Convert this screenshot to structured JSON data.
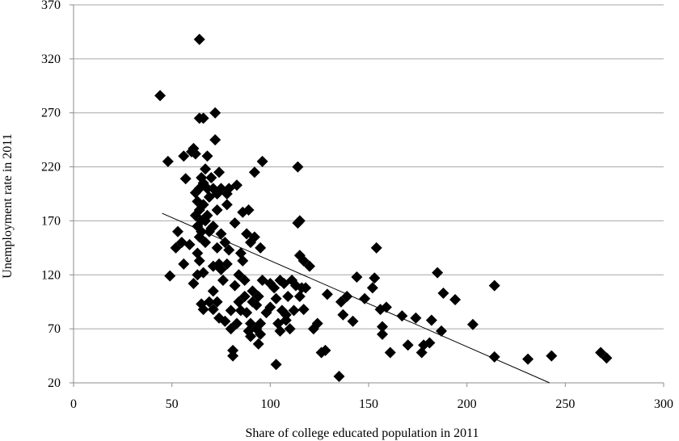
{
  "chart_data": {
    "type": "scatter",
    "xlabel": "Share of  college educated population in 2011",
    "ylabel": "Unemployment rate in 2011",
    "xlim": [
      0,
      300
    ],
    "ylim": [
      20,
      370
    ],
    "x_ticks": [
      0,
      50,
      100,
      150,
      200,
      250,
      300
    ],
    "y_ticks": [
      20,
      70,
      120,
      170,
      220,
      270,
      320,
      370
    ],
    "grid": "horizontal",
    "marker": "diamond",
    "marker_color": "#000000",
    "points": [
      [
        44,
        286
      ],
      [
        48,
        225
      ],
      [
        49,
        119
      ],
      [
        52,
        145
      ],
      [
        53,
        160
      ],
      [
        55,
        150
      ],
      [
        56,
        130
      ],
      [
        56,
        230
      ],
      [
        57,
        209
      ],
      [
        59,
        148
      ],
      [
        60,
        234
      ],
      [
        61,
        112
      ],
      [
        61,
        237
      ],
      [
        62,
        175
      ],
      [
        62,
        196
      ],
      [
        62,
        232
      ],
      [
        63,
        120
      ],
      [
        63,
        140
      ],
      [
        63,
        165
      ],
      [
        63,
        188
      ],
      [
        64,
        133
      ],
      [
        64,
        155
      ],
      [
        64,
        180
      ],
      [
        64,
        200
      ],
      [
        64,
        265
      ],
      [
        64,
        338
      ],
      [
        65,
        93
      ],
      [
        65,
        160
      ],
      [
        65,
        170
      ],
      [
        65,
        210
      ],
      [
        66,
        88
      ],
      [
        66,
        122
      ],
      [
        66,
        185
      ],
      [
        66,
        205
      ],
      [
        66,
        265
      ],
      [
        67,
        150
      ],
      [
        67,
        170
      ],
      [
        67,
        218
      ],
      [
        68,
        175
      ],
      [
        68,
        200
      ],
      [
        68,
        230
      ],
      [
        69,
        95
      ],
      [
        69,
        160
      ],
      [
        69,
        192
      ],
      [
        70,
        210
      ],
      [
        70,
        163
      ],
      [
        71,
        88
      ],
      [
        71,
        105
      ],
      [
        71,
        128
      ],
      [
        71,
        165
      ],
      [
        71,
        200
      ],
      [
        72,
        245
      ],
      [
        72,
        270
      ],
      [
        73,
        95
      ],
      [
        73,
        145
      ],
      [
        73,
        180
      ],
      [
        73,
        195
      ],
      [
        74,
        80
      ],
      [
        74,
        130
      ],
      [
        74,
        215
      ],
      [
        75,
        158
      ],
      [
        75,
        125
      ],
      [
        75,
        200
      ],
      [
        76,
        115
      ],
      [
        77,
        77
      ],
      [
        77,
        150
      ],
      [
        78,
        130
      ],
      [
        78,
        185
      ],
      [
        78,
        195
      ],
      [
        79,
        143
      ],
      [
        79,
        200
      ],
      [
        80,
        87
      ],
      [
        80,
        70
      ],
      [
        81,
        45
      ],
      [
        81,
        50
      ],
      [
        82,
        110
      ],
      [
        82,
        168
      ],
      [
        83,
        75
      ],
      [
        83,
        203
      ],
      [
        84,
        120
      ],
      [
        84,
        95
      ],
      [
        85,
        87
      ],
      [
        85,
        140
      ],
      [
        86,
        133
      ],
      [
        86,
        178
      ],
      [
        87,
        100
      ],
      [
        87,
        115
      ],
      [
        88,
        158
      ],
      [
        88,
        85
      ],
      [
        89,
        68
      ],
      [
        89,
        180
      ],
      [
        90,
        75
      ],
      [
        90,
        63
      ],
      [
        90,
        150
      ],
      [
        91,
        105
      ],
      [
        91,
        95
      ],
      [
        92,
        155
      ],
      [
        92,
        215
      ],
      [
        93,
        92
      ],
      [
        93,
        70
      ],
      [
        94,
        100
      ],
      [
        94,
        56
      ],
      [
        95,
        75
      ],
      [
        95,
        65
      ],
      [
        95,
        145
      ],
      [
        96,
        225
      ],
      [
        96,
        115
      ],
      [
        98,
        85
      ],
      [
        100,
        112
      ],
      [
        100,
        90
      ],
      [
        102,
        108
      ],
      [
        103,
        37
      ],
      [
        103,
        98
      ],
      [
        104,
        75
      ],
      [
        105,
        68
      ],
      [
        105,
        115
      ],
      [
        106,
        87
      ],
      [
        107,
        112
      ],
      [
        108,
        83
      ],
      [
        108,
        78
      ],
      [
        109,
        100
      ],
      [
        110,
        70
      ],
      [
        111,
        115
      ],
      [
        112,
        87
      ],
      [
        113,
        110
      ],
      [
        114,
        220
      ],
      [
        114,
        168
      ],
      [
        115,
        170
      ],
      [
        115,
        138
      ],
      [
        115,
        100
      ],
      [
        116,
        108
      ],
      [
        117,
        133
      ],
      [
        117,
        88
      ],
      [
        118,
        108
      ],
      [
        120,
        128
      ],
      [
        122,
        70
      ],
      [
        124,
        75
      ],
      [
        126,
        48
      ],
      [
        128,
        50
      ],
      [
        129,
        102
      ],
      [
        135,
        26
      ],
      [
        136,
        95
      ],
      [
        137,
        83
      ],
      [
        139,
        100
      ],
      [
        142,
        77
      ],
      [
        144,
        118
      ],
      [
        148,
        98
      ],
      [
        152,
        108
      ],
      [
        153,
        117
      ],
      [
        154,
        145
      ],
      [
        156,
        88
      ],
      [
        157,
        72
      ],
      [
        157,
        65
      ],
      [
        159,
        90
      ],
      [
        161,
        48
      ],
      [
        167,
        82
      ],
      [
        170,
        55
      ],
      [
        174,
        80
      ],
      [
        177,
        48
      ],
      [
        178,
        55
      ],
      [
        181,
        57
      ],
      [
        182,
        78
      ],
      [
        185,
        122
      ],
      [
        187,
        68
      ],
      [
        188,
        103
      ],
      [
        194,
        97
      ],
      [
        203,
        74
      ],
      [
        214,
        110
      ],
      [
        214,
        44
      ],
      [
        231,
        42
      ],
      [
        243,
        45
      ],
      [
        268,
        48
      ],
      [
        271,
        43
      ]
    ],
    "trendline": [
      [
        45,
        177
      ],
      [
        242,
        20
      ]
    ]
  }
}
